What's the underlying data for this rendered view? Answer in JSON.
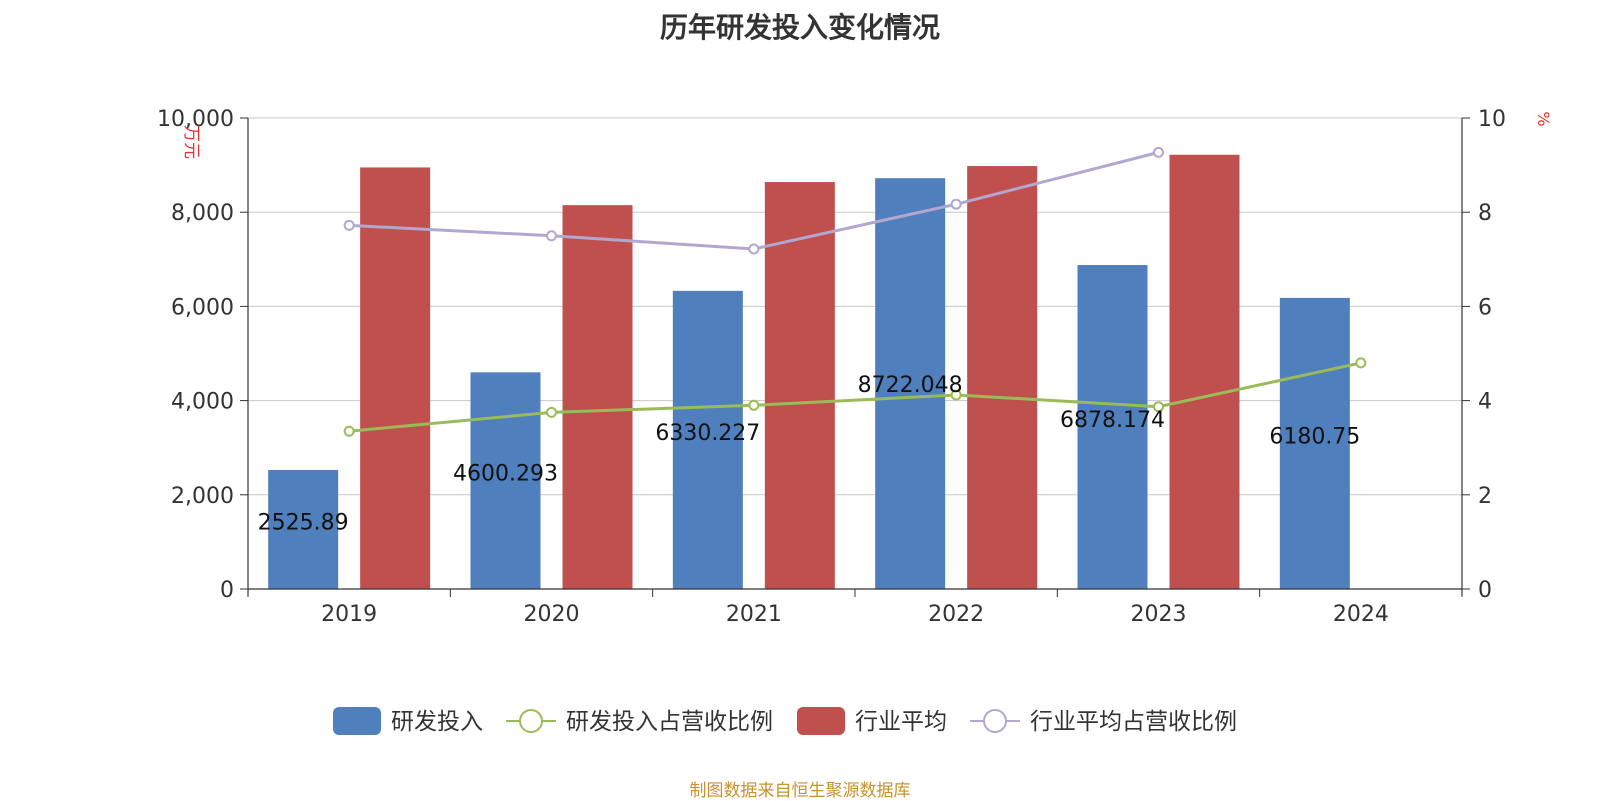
{
  "chart_data": {
    "type": "bar",
    "title": "历年研发投入变化情况",
    "categories": [
      "2019",
      "2020",
      "2021",
      "2022",
      "2023",
      "2024"
    ],
    "y_left": {
      "label": "万元",
      "min": 0,
      "max": 10000,
      "ticks": [
        "0",
        "2,000",
        "4,000",
        "6,000",
        "8,000",
        "10,000"
      ]
    },
    "y_right": {
      "label": "%",
      "min": 0,
      "max": 10,
      "ticks": [
        "0",
        "2",
        "4",
        "6",
        "8",
        "10"
      ]
    },
    "grid": true,
    "legend_position": "bottom-center",
    "series": [
      {
        "name": "研发投入",
        "kind": "bar",
        "axis": "left",
        "color": "#4f7fbd",
        "values": [
          2525.89,
          4600.293,
          6330.227,
          8722.048,
          6878.174,
          6180.75
        ],
        "labels": [
          "2525.89",
          "4600.293",
          "6330.227",
          "8722.048",
          "6878.174",
          "6180.75"
        ]
      },
      {
        "name": "研发投入占营收比例",
        "kind": "line",
        "axis": "right",
        "color": "#9bbb59",
        "values": [
          3.35,
          3.75,
          3.9,
          4.12,
          3.87,
          4.8
        ]
      },
      {
        "name": "行业平均",
        "kind": "bar",
        "axis": "left",
        "color": "#c0504d",
        "values": [
          8950,
          8150,
          8640,
          8980,
          9220,
          null
        ]
      },
      {
        "name": "行业平均占营收比例",
        "kind": "line",
        "axis": "right",
        "color": "#b3a7d0",
        "values": [
          7.72,
          7.5,
          7.22,
          8.17,
          9.27,
          null
        ]
      }
    ]
  },
  "footer": {
    "source": "制图数据来自恒生聚源数据库"
  }
}
